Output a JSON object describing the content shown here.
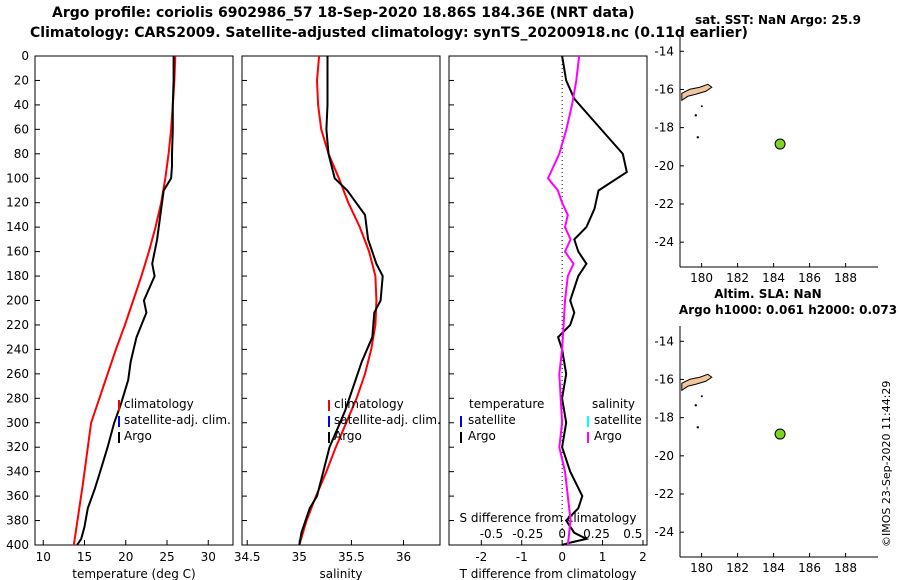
{
  "header": {
    "line1": "Argo profile: coriolis 6902986_57 18-Sep-2020 18.86S 184.36E (NRT data)",
    "line2": "Climatology: CARS2009. Satellite-adjusted climatology: synTS_20200918.nc (0.11d earlier)"
  },
  "footer_stamp": "©IMOS 23-Sep-2020 11:44:29",
  "colors": {
    "climatology": "#ff0000",
    "satellite": "#0000ff",
    "argo": "#000000",
    "sal_sat": "#00ffff",
    "sal_diff": "#ff00ff",
    "dot": "#7fd321"
  },
  "chart_data": [
    {
      "type": "line",
      "id": "temperature",
      "xlabel": "temperature (deg C)",
      "ylabel": "",
      "xlim": [
        9,
        33
      ],
      "ylim": [
        400,
        0
      ],
      "xticks": [
        "10",
        "15",
        "20",
        "25",
        "30"
      ],
      "yticks": [
        "0",
        "20",
        "40",
        "60",
        "80",
        "100",
        "120",
        "140",
        "160",
        "180",
        "200",
        "220",
        "240",
        "260",
        "280",
        "300",
        "320",
        "340",
        "360",
        "380",
        "400"
      ],
      "legend": [
        "climatology",
        "satellite-adj. clim.",
        "Argo"
      ],
      "series": [
        {
          "name": "climatology",
          "x": [
            26,
            25.9,
            25.7,
            25.5,
            25.2,
            24.8,
            24.3,
            23.6,
            22.8,
            21.9,
            20.9,
            19.9,
            18.8,
            17.8,
            16.8,
            15.8,
            14.8,
            13.7
          ],
          "y": [
            0,
            20,
            40,
            60,
            80,
            100,
            120,
            140,
            160,
            180,
            200,
            220,
            240,
            260,
            280,
            300,
            350,
            400
          ]
        },
        {
          "name": "Argo",
          "x": [
            25.8,
            25.8,
            25.7,
            25.7,
            25.6,
            25.6,
            25.5,
            24.6,
            24.2,
            23.8,
            23.2,
            23.5,
            22.2,
            22.5,
            21.3,
            20.6,
            20.3,
            19.4,
            18.6,
            17.8,
            16.9,
            16.2,
            15.4,
            15,
            14.6,
            14.1
          ],
          "y": [
            0,
            20,
            40,
            60,
            80,
            90,
            100,
            110,
            130,
            150,
            170,
            180,
            200,
            210,
            230,
            250,
            265,
            285,
            300,
            320,
            340,
            355,
            370,
            385,
            395,
            400
          ]
        }
      ]
    },
    {
      "type": "line",
      "id": "salinity",
      "xlabel": "salinity",
      "ylabel": "",
      "xlim": [
        34.45,
        36.35
      ],
      "ylim": [
        400,
        0
      ],
      "xticks": [
        "34.5",
        "35",
        "35.5",
        "36"
      ],
      "legend": [
        "climatology",
        "satellite-adj. clim.",
        "Argo"
      ],
      "series": [
        {
          "name": "climatology",
          "x": [
            35.19,
            35.17,
            35.18,
            35.21,
            35.28,
            35.38,
            35.47,
            35.58,
            35.67,
            35.73,
            35.74,
            35.73,
            35.69,
            35.63,
            35.55,
            35.45,
            35.35,
            35.26,
            35.16,
            35.07,
            35
          ],
          "y": [
            0,
            20,
            40,
            60,
            80,
            100,
            120,
            140,
            160,
            180,
            200,
            220,
            240,
            260,
            280,
            300,
            320,
            340,
            360,
            380,
            400
          ]
        },
        {
          "name": "Argo",
          "x": [
            35.27,
            35.27,
            35.27,
            35.26,
            35.28,
            35.34,
            35.46,
            35.63,
            35.66,
            35.74,
            35.8,
            35.78,
            35.72,
            35.7,
            35.6,
            35.52,
            35.44,
            35.39,
            35.29,
            35.23,
            35.17,
            35.1,
            35.06,
            35.02,
            35
          ],
          "y": [
            0,
            20,
            40,
            60,
            80,
            100,
            110,
            130,
            150,
            170,
            180,
            200,
            210,
            230,
            250,
            270,
            290,
            300,
            320,
            340,
            360,
            370,
            380,
            390,
            400
          ]
        }
      ]
    },
    {
      "type": "line",
      "id": "difference",
      "xlabel": "T difference from climatology",
      "x2label": "S difference from climatology",
      "xlim": [
        -2.8,
        2.1
      ],
      "ylim": [
        400,
        0
      ],
      "xticks": [
        "-2",
        "-1",
        "0",
        "1",
        "2"
      ],
      "x2ticks": [
        "-0.5",
        "-0.25",
        "0",
        "0.25",
        "0.5"
      ],
      "legend_left_title": "temperature",
      "legend_left": [
        "satellite",
        "Argo"
      ],
      "legend_right_title": "salinity",
      "legend_right": [
        "satellite",
        "Argo"
      ],
      "series": [
        {
          "name": "T diff Argo",
          "x": [
            0,
            0.1,
            0.3,
            0.7,
            1.1,
            1.5,
            1.6,
            0.9,
            0.8,
            0.6,
            0.3,
            0.4,
            0.6,
            0.4,
            0.2,
            0.3,
            0.2,
            -0.1,
            0,
            0.1,
            0,
            0.1,
            0,
            0.2,
            0.5,
            0.4,
            0.1,
            0.3,
            0.6,
            0.2,
            0
          ],
          "y": [
            0,
            20,
            35,
            50,
            65,
            80,
            95,
            110,
            125,
            140,
            150,
            160,
            170,
            180,
            200,
            210,
            220,
            230,
            240,
            260,
            280,
            300,
            320,
            340,
            360,
            370,
            380,
            390,
            395,
            398,
            400
          ]
        },
        {
          "name": "S diff Argo",
          "x": [
            0.12,
            0.1,
            0.07,
            0.03,
            -0.02,
            -0.06,
            -0.1,
            -0.03,
            0,
            0.04,
            0.02,
            0.06,
            0.02,
            0.08,
            0.04,
            0.02,
            0.01,
            0,
            -0.02,
            -0.01,
            0,
            -0.02,
            0.02,
            0.04,
            0.06,
            0.05,
            0.04
          ],
          "y": [
            0,
            20,
            40,
            60,
            80,
            90,
            100,
            110,
            120,
            130,
            140,
            150,
            160,
            170,
            180,
            200,
            220,
            240,
            260,
            280,
            300,
            320,
            340,
            360,
            380,
            390,
            400
          ]
        }
      ]
    },
    {
      "type": "map",
      "id": "sst-map",
      "title": "sat. SST: NaN Argo: 25.9",
      "xticks": [
        "180",
        "182",
        "184",
        "186",
        "188"
      ],
      "yticks": [
        "-14",
        "-16",
        "-18",
        "-20",
        "-22",
        "-24"
      ],
      "xlim": [
        178.8,
        189.8
      ],
      "ylim": [
        -25.3,
        -13.2
      ],
      "point": {
        "lon": 184.36,
        "lat": -18.86
      }
    },
    {
      "type": "map",
      "id": "sla-map",
      "title": "Altim. SLA: NaN",
      "subtitle": "Argo h1000: 0.061 h2000: 0.073",
      "xticks": [
        "180",
        "182",
        "184",
        "186",
        "188"
      ],
      "yticks": [
        "-14",
        "-16",
        "-18",
        "-20",
        "-22",
        "-24"
      ],
      "xlim": [
        178.8,
        189.8
      ],
      "ylim": [
        -25.3,
        -13.2
      ],
      "point": {
        "lon": 184.36,
        "lat": -18.86
      }
    }
  ]
}
